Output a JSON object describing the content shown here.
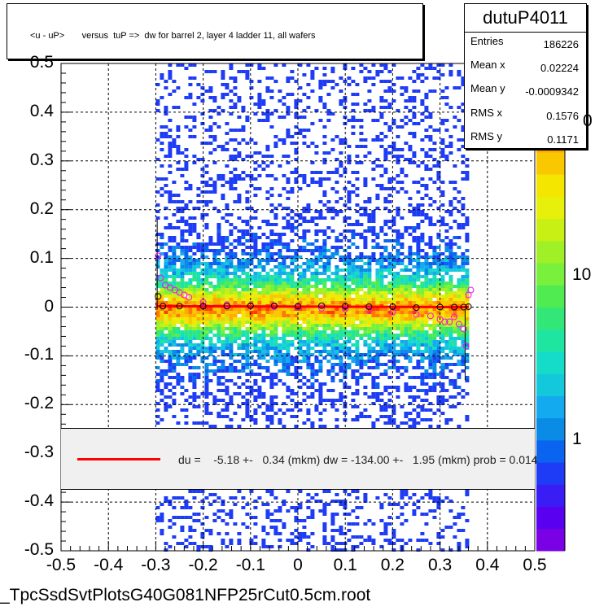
{
  "title": "<u - uP>       versus  tuP =>  dw for barrel 2, layer 4 ladder 11, all wafers",
  "stats": {
    "name": "dutuP4011",
    "rows": [
      {
        "label": "Entries",
        "value": "186226"
      },
      {
        "label": "Mean x",
        "value": "0.02224"
      },
      {
        "label": "Mean y",
        "value": "-0.0009342"
      },
      {
        "label": "RMS x",
        "value": "0.1576"
      },
      {
        "label": "RMS y",
        "value": "0.1171"
      }
    ]
  },
  "fit_legend": "du =    -5.18 +-   0.34 (mkm) dw = -134.00 +-   1.95 (mkm) prob = 0.014",
  "footer": "_TpcSsdSvtPlotsG40G081NFP25rCut0.5cm.root",
  "colors": {
    "fit_line": "#ff0000",
    "profile_black": "#000000",
    "profile_magenta": "#ff00ff",
    "palette": [
      "#7a00e6",
      "#5a00f0",
      "#3a1cf5",
      "#1e3cf5",
      "#0a64f0",
      "#0a8ce6",
      "#14aaf0",
      "#14c8dc",
      "#14dcc8",
      "#1ee6a0",
      "#32e678",
      "#50eb50",
      "#78f03c",
      "#a0f028",
      "#c8f014",
      "#e6f00a",
      "#f5e600",
      "#fac800",
      "#ffaa00",
      "#ff7800",
      "#ff3c00",
      "#e60000"
    ]
  },
  "chart_data": {
    "type": "heatmap",
    "title": "<u - uP>       versus  tuP =>  dw for barrel 2, layer 4 ladder 11, all wafers",
    "xlim": [
      -0.5,
      0.5
    ],
    "ylim": [
      -0.5,
      0.5
    ],
    "x_ticks": [
      "-0.5",
      "-0.4",
      "-0.3",
      "-0.2",
      "-0.1",
      "0",
      "0.1",
      "0.2",
      "0.3",
      "0.4",
      "0.5"
    ],
    "y_ticks": [
      "-0.5",
      "-0.4",
      "-0.3",
      "-0.2",
      "-0.1",
      "0",
      "0.1",
      "0.2",
      "0.3",
      "0.4",
      "0.5"
    ],
    "z_scale": "log",
    "z_ticks": [
      "1",
      "10"
    ],
    "z_tick_partial": "0",
    "grid": true,
    "populated_x_range": [
      -0.3,
      0.36
    ],
    "core_y_width": 0.03,
    "profile_black": {
      "x": [
        -0.295,
        -0.285,
        -0.25,
        -0.2,
        -0.15,
        -0.1,
        -0.05,
        0,
        0.05,
        0.1,
        0.15,
        0.2,
        0.25,
        0.3,
        0.33,
        0.35,
        0.36
      ],
      "y": [
        0.022,
        0.002,
        0.002,
        0.002,
        0.002,
        0.003,
        0.003,
        0.002,
        0.003,
        0.002,
        0.001,
        0.001,
        -0.001,
        0.0,
        0.0,
        0.0,
        0.001
      ]
    },
    "profile_magenta": {
      "x": [
        -0.295,
        -0.29,
        -0.28,
        -0.27,
        -0.26,
        -0.25,
        -0.24,
        -0.23,
        -0.2,
        -0.15,
        -0.1,
        -0.05,
        0,
        0.05,
        0.1,
        0.15,
        0.2,
        0.25,
        0.28,
        0.3,
        0.31,
        0.32,
        0.33,
        0.34,
        0.35,
        0.355,
        0.36,
        0.365
      ],
      "y": [
        0.105,
        0.06,
        0.045,
        0.04,
        0.035,
        0.03,
        0.025,
        0.02,
        0.01,
        0.005,
        0.002,
        0.001,
        0.0,
        -0.002,
        -0.004,
        -0.006,
        -0.01,
        -0.015,
        -0.018,
        -0.025,
        -0.03,
        -0.03,
        -0.02,
        -0.035,
        -0.045,
        -0.08,
        0.025,
        0.035
      ]
    },
    "fit_line": {
      "x": [
        -0.3,
        0.36
      ],
      "y": [
        0.002,
        0.0
      ]
    }
  }
}
